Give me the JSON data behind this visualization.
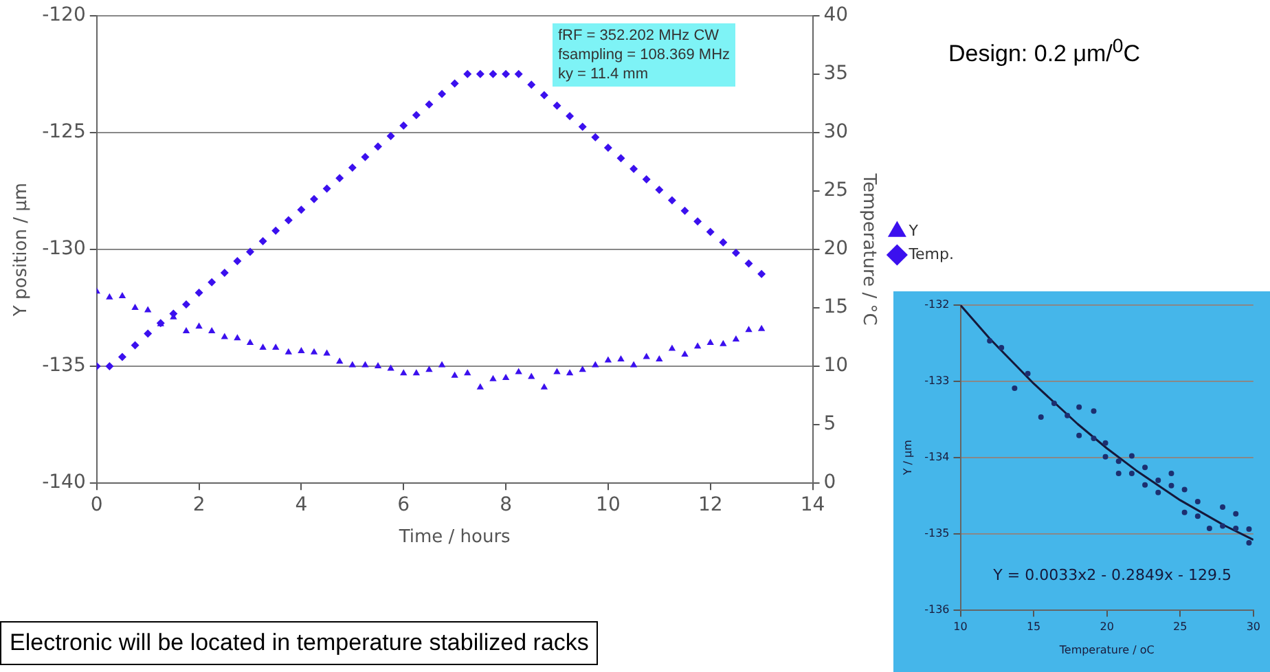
{
  "chart_data": [
    {
      "type": "scatter",
      "xlabel": "Time / hours",
      "ylabel": "Y position / µm",
      "y2label": "Temperature / °C",
      "x": [
        0,
        0.25,
        0.5,
        0.75,
        1,
        1.25,
        1.5,
        1.75,
        2,
        2.25,
        2.5,
        2.75,
        3,
        3.25,
        3.5,
        3.75,
        4,
        4.25,
        4.5,
        4.75,
        5,
        5.25,
        5.5,
        5.75,
        6,
        6.25,
        6.5,
        6.75,
        7,
        7.25,
        7.5,
        7.75,
        8,
        8.25,
        8.5,
        8.75,
        9,
        9.25,
        9.5,
        9.75,
        10,
        10.25,
        10.5,
        10.75,
        11,
        11.25,
        11.5,
        11.75,
        12,
        12.25,
        12.5,
        12.75,
        13
      ],
      "series": [
        {
          "name": "Y",
          "color": "#3b10ee",
          "marker": "triangle",
          "values": [
            -131.8,
            -132.05,
            -132.0,
            -132.5,
            -132.6,
            -133.2,
            -132.9,
            -133.5,
            -133.3,
            -133.5,
            -133.75,
            -133.8,
            -134.0,
            -134.2,
            -134.2,
            -134.4,
            -134.35,
            -134.4,
            -134.45,
            -134.8,
            -134.95,
            -134.95,
            -135.0,
            -135.1,
            -135.3,
            -135.3,
            -135.15,
            -134.95,
            -135.4,
            -135.3,
            -135.9,
            -135.55,
            -135.5,
            -135.25,
            -135.45,
            -135.9,
            -135.25,
            -135.3,
            -135.15,
            -134.95,
            -134.75,
            -134.7,
            -134.95,
            -134.6,
            -134.7,
            -134.25,
            -134.5,
            -134.15,
            -134.0,
            -134.05,
            -133.85,
            -133.45,
            -133.4
          ]
        },
        {
          "name": "Temp.",
          "color": "#3b10ee",
          "marker": "diamond",
          "axis": "y2",
          "values": [
            10,
            10,
            10.8,
            11.8,
            12.8,
            13.7,
            14.5,
            15.3,
            16.3,
            17.2,
            18,
            19,
            19.8,
            20.7,
            21.6,
            22.5,
            23.4,
            24.3,
            25.2,
            26.1,
            27,
            27.9,
            28.8,
            29.7,
            30.6,
            31.5,
            32.4,
            33.3,
            34.2,
            35,
            35,
            35,
            35,
            35,
            34.1,
            33.2,
            32.3,
            31.4,
            30.5,
            29.6,
            28.7,
            27.8,
            26.9,
            26,
            25.1,
            24.2,
            23.3,
            22.4,
            21.5,
            20.6,
            19.7,
            18.8,
            17.9
          ]
        }
      ],
      "xlim": [
        0,
        14
      ],
      "xticks": [
        0,
        2,
        4,
        6,
        8,
        10,
        12,
        14
      ],
      "ylim": [
        -140,
        -120
      ],
      "yticks": [
        -140,
        -135,
        -130,
        -125,
        -120
      ],
      "y2lim": [
        0,
        40
      ],
      "y2ticks": [
        0,
        5,
        10,
        15,
        20,
        25,
        30,
        35,
        40
      ],
      "grid": "y",
      "legend": "right",
      "annotations": [
        "fRF = 352.202 MHz CW\nfsampling = 108.369 MHz\nky = 11.4 mm",
        "Design: 0.2 μm/$^{0}$C",
        "Electronic will be located in temperature stabilized racks"
      ]
    },
    {
      "type": "scatter",
      "xlabel": "Temperature / oC",
      "ylabel": "Y / µm",
      "series": [
        {
          "color": "#1c2f70",
          "marker": "circle",
          "x": [
            12.0,
            12.8,
            13.7,
            14.6,
            15.5,
            16.4,
            17.3,
            18.1,
            18.1,
            19.1,
            19.1,
            19.9,
            19.9,
            20.8,
            20.8,
            21.7,
            21.7,
            22.6,
            22.6,
            23.5,
            23.5,
            24.4,
            24.4,
            25.3,
            25.3,
            26.2,
            26.2,
            27.0,
            27.9,
            27.9,
            28.8,
            28.8,
            29.7,
            29.7
          ],
          "values": [
            -132.47,
            -132.56,
            -133.09,
            -132.9,
            -133.47,
            -133.29,
            -133.45,
            -133.34,
            -133.71,
            -133.39,
            -133.75,
            -133.81,
            -133.99,
            -134.05,
            -134.21,
            -133.98,
            -134.21,
            -134.13,
            -134.36,
            -134.3,
            -134.46,
            -134.21,
            -134.37,
            -134.42,
            -134.72,
            -134.58,
            -134.77,
            -134.93,
            -134.65,
            -134.9,
            -134.74,
            -134.93,
            -134.94,
            -135.12
          ]
        },
        {
          "type": "line",
          "color": "#15183a",
          "marker": "none",
          "x": [
            10,
            12,
            15,
            18,
            20,
            22,
            25,
            28,
            30
          ],
          "values": [
            -132.0,
            -132.44,
            -133.03,
            -133.56,
            -133.88,
            -134.17,
            -134.56,
            -134.89,
            -135.08
          ]
        }
      ],
      "xlim": [
        10,
        30
      ],
      "xticks": [
        10,
        15,
        20,
        25,
        30
      ],
      "ylim": [
        -136,
        -132
      ],
      "yticks": [
        -136,
        -135,
        -134,
        -133,
        -132
      ],
      "grid": "y",
      "annotations": [
        "Y = 0.0033x2 - 0.2849x - 129.5"
      ]
    }
  ]
}
